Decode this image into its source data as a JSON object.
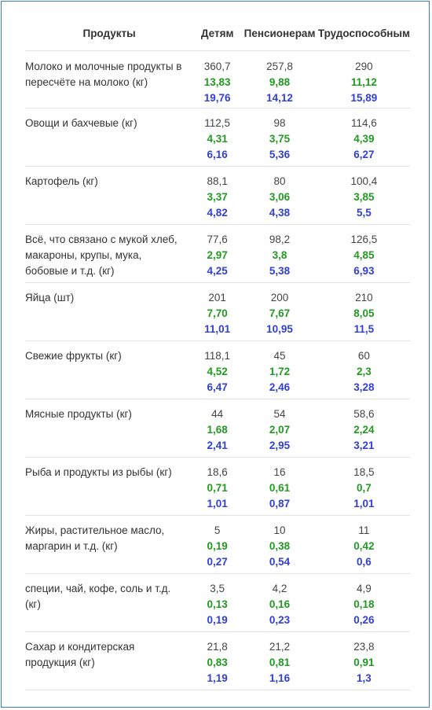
{
  "headers": [
    "Продукты",
    "Детям",
    "Пенсионерам",
    "Трудоспособным"
  ],
  "rows": [
    {
      "name": "Молоко и молочные продукты в пересчёте на молоко (кг)",
      "cols": [
        [
          "360,7",
          "13,83",
          "19,76"
        ],
        [
          "257,8",
          "9,88",
          "14,12"
        ],
        [
          "290",
          "11,12",
          "15,89"
        ]
      ]
    },
    {
      "name": "Овощи и бахчевые (кг)",
      "cols": [
        [
          "112,5",
          "4,31",
          "6,16"
        ],
        [
          "98",
          "3,75",
          "5,36"
        ],
        [
          "114,6",
          "4,39",
          "6,27"
        ]
      ]
    },
    {
      "name": "Картофель (кг)",
      "cols": [
        [
          "88,1",
          "3,37",
          "4,82"
        ],
        [
          "80",
          "3,06",
          "4,38"
        ],
        [
          "100,4",
          "3,85",
          "5,5"
        ]
      ]
    },
    {
      "name": "Всё, что связано с мукой хлеб, макароны, крупы, мука, бобовые и т.д. (кг)",
      "cols": [
        [
          "77,6",
          "2,97",
          "4,25"
        ],
        [
          "98,2",
          "3,8",
          "5,38"
        ],
        [
          "126,5",
          "4,85",
          "6,93"
        ]
      ]
    },
    {
      "name": "Яйца (шт)",
      "cols": [
        [
          "201",
          "7,70",
          "11,01"
        ],
        [
          "200",
          "7,67",
          "10,95"
        ],
        [
          "210",
          "8,05",
          "11,5"
        ]
      ]
    },
    {
      "name": "Свежие фрукты (кг)",
      "cols": [
        [
          "118,1",
          "4,52",
          "6,47"
        ],
        [
          "45",
          "1,72",
          "2,46"
        ],
        [
          "60",
          "2,3",
          "3,28"
        ]
      ]
    },
    {
      "name": "Мясные продукты (кг)",
      "cols": [
        [
          "44",
          "1,68",
          "2,41"
        ],
        [
          "54",
          "2,07",
          "2,95"
        ],
        [
          "58,6",
          "2,24",
          "3,21"
        ]
      ]
    },
    {
      "name": "Рыба и продукты из рыбы (кг)",
      "cols": [
        [
          "18,6",
          "0,71",
          "1,01"
        ],
        [
          "16",
          "0,61",
          "0,87"
        ],
        [
          "18,5",
          "0,7",
          "1,01"
        ]
      ]
    },
    {
      "name": "Жиры, растительное масло, маргарин и т.д. (кг)",
      "cols": [
        [
          "5",
          "0,19",
          "0,27"
        ],
        [
          "10",
          "0,38",
          "0,54"
        ],
        [
          "11",
          "0,42",
          "0,6"
        ]
      ]
    },
    {
      "name": "специи, чай, кофе, соль и т.д. (кг)",
      "cols": [
        [
          "3,5",
          "0,13",
          "0,19"
        ],
        [
          "4,2",
          "0,16",
          "0,23"
        ],
        [
          "4,9",
          "0,18",
          "0,26"
        ]
      ]
    },
    {
      "name": "Сахар и кондитерская продукция (кг)",
      "cols": [
        [
          "21,8",
          "0,83",
          "1,19"
        ],
        [
          "21,2",
          "0,81",
          "1,16"
        ],
        [
          "23,8",
          "0,91",
          "1,3"
        ]
      ]
    }
  ],
  "colors": {
    "row_value": "#444444",
    "green_value": "#219a21",
    "blue_value": "#2f3fd8",
    "border": "#3a7bd5"
  }
}
